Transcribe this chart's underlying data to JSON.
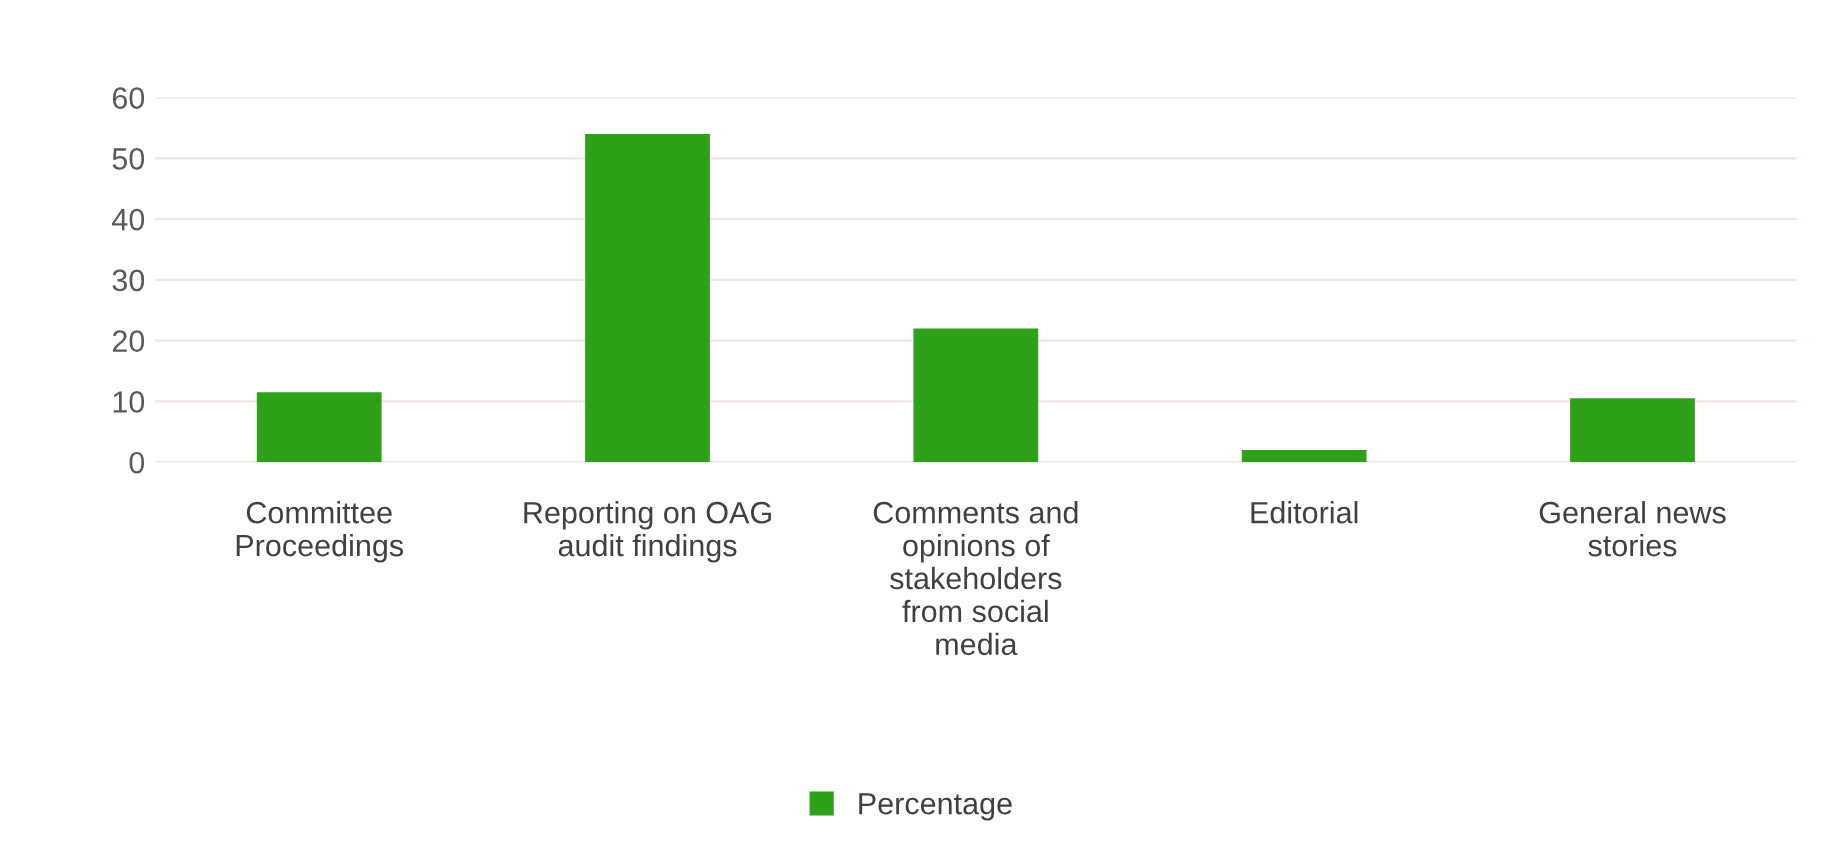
{
  "chart_data": {
    "type": "bar",
    "categories": [
      "Committee Proceedings",
      "Reporting on OAG audit findings",
      "Comments and opinions of stakeholders from social media",
      "Editorial",
      "General news stories"
    ],
    "series": [
      {
        "name": "Percentage",
        "color": "#2ea01a",
        "values": [
          11.5,
          54,
          22,
          2,
          10.5
        ]
      }
    ],
    "ylim": [
      0,
      60
    ],
    "yticks": [
      0,
      10,
      20,
      30,
      40,
      50,
      60
    ],
    "grid": "y",
    "legend": "bottom"
  }
}
